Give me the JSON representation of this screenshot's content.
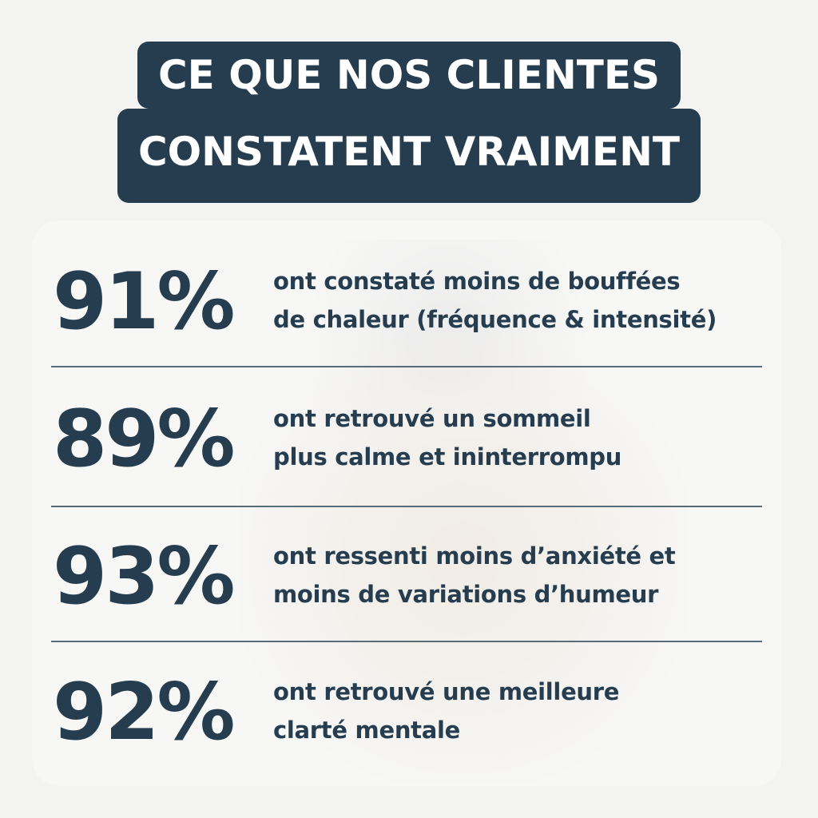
{
  "title": {
    "line1": "CE QUE NOS CLIENTES",
    "line2": "CONSTATENT VRAIMENT"
  },
  "stats": [
    {
      "percent": "91%",
      "line1": "ont constaté moins de bouffées",
      "line2": "de chaleur (fréquence & intensité)"
    },
    {
      "percent": "89%",
      "line1": "ont retrouvé un sommeil",
      "line2": "plus calme et ininterrompu"
    },
    {
      "percent": "93%",
      "line1": "ont ressenti moins d’anxiété et",
      "line2": "moins de variations d’humeur"
    },
    {
      "percent": "92%",
      "line1": "ont retrouvé une meilleure",
      "line2": "clarté mentale"
    }
  ],
  "colors": {
    "navy": "#263d50",
    "background": "#f3f3f1"
  }
}
